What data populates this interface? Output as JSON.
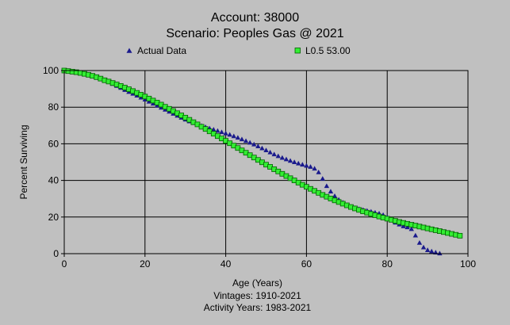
{
  "chart_data": {
    "type": "scatter",
    "title": "Account: 38000",
    "subtitle": "Scenario: Peoples Gas @ 2021",
    "xlabel": "Age (Years)",
    "ylabel": "Percent Surviving",
    "xlim": [
      0,
      100
    ],
    "ylim": [
      0,
      100
    ],
    "xticks": [
      "0",
      "20",
      "40",
      "60",
      "80",
      "100"
    ],
    "yticks": [
      "0",
      "20",
      "40",
      "60",
      "80",
      "100"
    ],
    "grid": true,
    "legend_position": "top",
    "footnotes": [
      "Vintages: 1910-2021",
      "Activity Years: 1983-2021"
    ],
    "colors": {
      "background": "#c0c0c0",
      "actual_marker": "#1a1a8c",
      "fitted_marker": "#33ee33",
      "fitted_outline": "#006000",
      "grid": "#000000"
    },
    "series": [
      {
        "name": "Actual Data",
        "marker": "triangle",
        "x": [
          0,
          1,
          2,
          3,
          4,
          5,
          6,
          7,
          8,
          9,
          10,
          11,
          12,
          13,
          14,
          15,
          16,
          17,
          18,
          19,
          20,
          21,
          22,
          23,
          24,
          25,
          26,
          27,
          28,
          29,
          30,
          31,
          32,
          33,
          34,
          35,
          36,
          37,
          38,
          39,
          40,
          41,
          42,
          43,
          44,
          45,
          46,
          47,
          48,
          49,
          50,
          51,
          52,
          53,
          54,
          55,
          56,
          57,
          58,
          59,
          60,
          61,
          62,
          63,
          64,
          65,
          66,
          67,
          68,
          69,
          70,
          71,
          72,
          73,
          74,
          75,
          76,
          77,
          78,
          79,
          80,
          81,
          82,
          83,
          84,
          85,
          86,
          87,
          88,
          89,
          90,
          91,
          92,
          93
        ],
        "y": [
          100,
          99.7,
          99.4,
          99.1,
          98.7,
          98.3,
          97.8,
          97.2,
          96.5,
          95.7,
          94.8,
          93.8,
          92.8,
          91.7,
          90.6,
          89.5,
          88.4,
          87.4,
          86.4,
          85.3,
          84.2,
          83.1,
          82,
          80.9,
          79.8,
          78.7,
          77.6,
          76.5,
          75.4,
          74.3,
          73.3,
          72.3,
          71.4,
          70.6,
          69.9,
          69.2,
          68.5,
          67.8,
          67.1,
          66.4,
          65.7,
          65,
          64.2,
          63.4,
          62.5,
          61.6,
          60.7,
          59.7,
          58.7,
          57.6,
          56.5,
          55.4,
          54.3,
          53.3,
          52.4,
          51.6,
          50.8,
          50,
          49.3,
          48.7,
          48.1,
          47.5,
          46.5,
          44.5,
          41,
          37,
          34,
          31.5,
          29.5,
          28,
          26.5,
          25.5,
          25,
          24.5,
          24,
          23.5,
          23,
          22.5,
          22,
          21.2,
          20,
          18.5,
          17,
          16,
          15,
          14.5,
          13.5,
          10,
          6,
          3.5,
          2,
          1.3,
          0.7,
          0.2
        ]
      },
      {
        "name": "L0.5 53.00",
        "marker": "square",
        "x": [
          0,
          1,
          2,
          3,
          4,
          5,
          6,
          7,
          8,
          9,
          10,
          11,
          12,
          13,
          14,
          15,
          16,
          17,
          18,
          19,
          20,
          21,
          22,
          23,
          24,
          25,
          26,
          27,
          28,
          29,
          30,
          31,
          32,
          33,
          34,
          35,
          36,
          37,
          38,
          39,
          40,
          41,
          42,
          43,
          44,
          45,
          46,
          47,
          48,
          49,
          50,
          51,
          52,
          53,
          54,
          55,
          56,
          57,
          58,
          59,
          60,
          61,
          62,
          63,
          64,
          65,
          66,
          67,
          68,
          69,
          70,
          71,
          72,
          73,
          74,
          75,
          76,
          77,
          78,
          79,
          80,
          81,
          82,
          83,
          84,
          85,
          86,
          87,
          88,
          89,
          90,
          91,
          92,
          93,
          94,
          95,
          96,
          97,
          98
        ],
        "y": [
          100,
          99.7,
          99.4,
          99.1,
          98.7,
          98.2,
          97.7,
          97.1,
          96.4,
          95.6,
          94.7,
          94,
          93.2,
          92.4,
          91.6,
          90.7,
          89.8,
          88.8,
          87.8,
          86.8,
          85.8,
          84.7,
          83.6,
          82.5,
          81.4,
          80.2,
          79.1,
          77.9,
          76.7,
          75.5,
          74.3,
          73.1,
          71.8,
          70.6,
          69.3,
          68.1,
          66.8,
          65.5,
          64.2,
          62.9,
          61.6,
          60.3,
          59,
          57.7,
          56.4,
          55.1,
          53.8,
          52.5,
          51.2,
          49.9,
          48.6,
          47.4,
          46.1,
          44.9,
          43.6,
          42.4,
          41.2,
          40,
          38.8,
          37.6,
          36.5,
          35.4,
          34.3,
          33.2,
          32.1,
          31.1,
          30.1,
          29.1,
          28.2,
          27.3,
          26.4,
          25.5,
          24.7,
          23.9,
          23.1,
          22.4,
          21.7,
          21,
          20.3,
          19.7,
          19.1,
          18.5,
          17.9,
          17.3,
          16.8,
          16.3,
          15.8,
          15.3,
          14.8,
          14.3,
          13.8,
          13.3,
          12.8,
          12.3,
          11.8,
          11.3,
          10.8,
          10.3,
          9.8
        ]
      }
    ]
  }
}
